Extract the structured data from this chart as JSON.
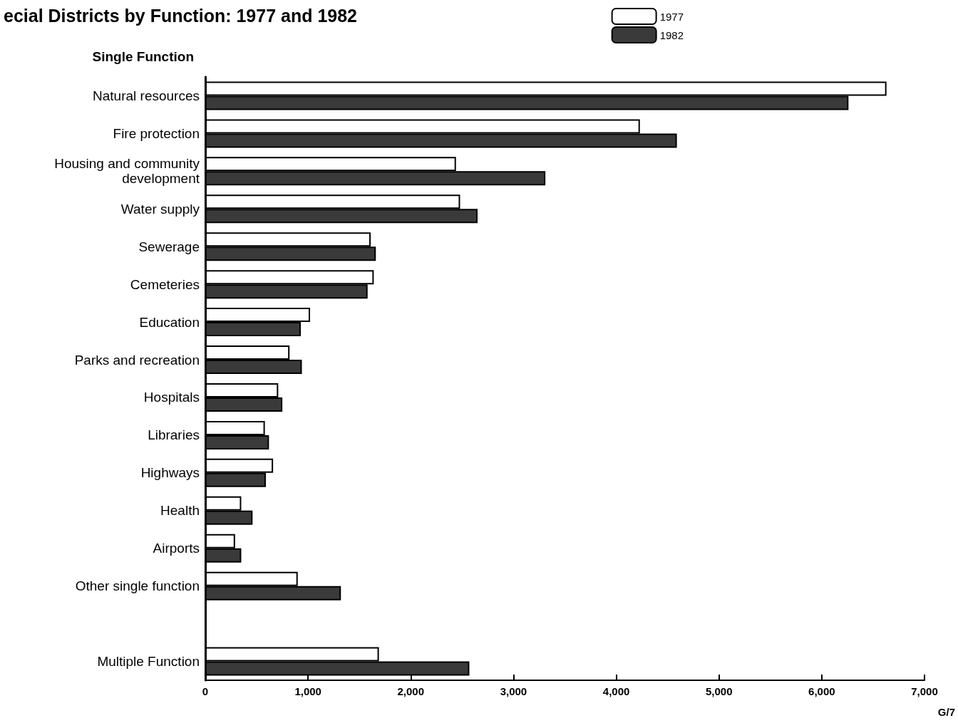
{
  "chart_data": {
    "type": "bar",
    "orientation": "horizontal",
    "title": "ecial Districts by Function: 1977 and 1982",
    "categories": [
      "Natural resources",
      "Fire protection",
      "Housing and community\ndevelopment",
      "Water supply",
      "Sewerage",
      "Cemeteries",
      "Education",
      "Parks and recreation",
      "Hospitals",
      "Libraries",
      "Highways",
      "Health",
      "Airports",
      "Other single function",
      null,
      "Multiple Function"
    ],
    "series": [
      {
        "name": "1977",
        "color": "#ffffff",
        "values": [
          6630,
          4230,
          2440,
          2480,
          1610,
          1640,
          1020,
          820,
          710,
          580,
          660,
          350,
          290,
          900,
          null,
          1690
        ]
      },
      {
        "name": "1982",
        "color": "#3a3a3a",
        "values": [
          6260,
          4590,
          3310,
          2650,
          1660,
          1580,
          930,
          940,
          750,
          620,
          590,
          460,
          350,
          1320,
          null,
          2570
        ]
      }
    ],
    "xlim": [
      0,
      7000
    ],
    "xticks": [
      {
        "value": 0,
        "label": "0"
      },
      {
        "value": 1000,
        "label": "1,000"
      },
      {
        "value": 2000,
        "label": "2,000"
      },
      {
        "value": 3000,
        "label": "3,000"
      },
      {
        "value": 4000,
        "label": "4,000"
      },
      {
        "value": 5000,
        "label": "5,000"
      },
      {
        "value": 6000,
        "label": "6,000"
      },
      {
        "value": 7000,
        "label": "7,000"
      }
    ],
    "annotations": [
      "Single Function",
      "G/7"
    ],
    "legend": "top right",
    "grid": false
  }
}
